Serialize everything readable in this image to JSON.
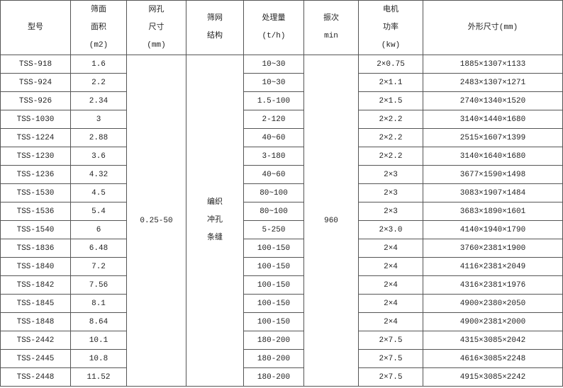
{
  "headers": [
    {
      "lines": [
        "型号"
      ]
    },
    {
      "lines": [
        "筛面",
        "面积",
        "(m2)"
      ]
    },
    {
      "lines": [
        "网孔",
        "尺寸",
        "(mm)"
      ]
    },
    {
      "lines": [
        "筛网",
        "结构"
      ]
    },
    {
      "lines": [
        "处理量",
        "(t/h)"
      ]
    },
    {
      "lines": [
        "振次",
        "min"
      ]
    },
    {
      "lines": [
        "电机",
        "功率",
        "(kw)"
      ]
    },
    {
      "lines": [
        "外形尺寸(mm)"
      ]
    }
  ],
  "shared": {
    "mesh_size": "0.25-50",
    "mesh_structure": [
      "编织",
      "冲孔",
      "条缝"
    ],
    "vibration": "960"
  },
  "rows": [
    {
      "model": "TSS-918",
      "area": "1.6",
      "capacity": "10~30",
      "power": "2×0.75",
      "dims": "1885×1307×1133"
    },
    {
      "model": "TSS-924",
      "area": "2.2",
      "capacity": "10~30",
      "power": "2×1.1",
      "dims": "2483×1307×1271"
    },
    {
      "model": "TSS-926",
      "area": "2.34",
      "capacity": "1.5-100",
      "power": "2×1.5",
      "dims": "2740×1340×1520"
    },
    {
      "model": "TSS-1030",
      "area": "3",
      "capacity": "2-120",
      "power": "2×2.2",
      "dims": "3140×1440×1680"
    },
    {
      "model": "TSS-1224",
      "area": "2.88",
      "capacity": "40~60",
      "power": "2×2.2",
      "dims": "2515×1607×1399"
    },
    {
      "model": "TSS-1230",
      "area": "3.6",
      "capacity": "3-180",
      "power": "2×2.2",
      "dims": "3140×1640×1680"
    },
    {
      "model": "TSS-1236",
      "area": "4.32",
      "capacity": "40~60",
      "power": "2×3",
      "dims": "3677×1590×1498"
    },
    {
      "model": "TSS-1530",
      "area": "4.5",
      "capacity": "80~100",
      "power": "2×3",
      "dims": "3083×1907×1484"
    },
    {
      "model": "TSS-1536",
      "area": "5.4",
      "capacity": "80~100",
      "power": "2×3",
      "dims": "3683×1890×1601"
    },
    {
      "model": "TSS-1540",
      "area": "6",
      "capacity": "5-250",
      "power": "2×3.0",
      "dims": "4140×1940×1790"
    },
    {
      "model": "TSS-1836",
      "area": "6.48",
      "capacity": "100-150",
      "power": "2×4",
      "dims": "3760×2381×1900"
    },
    {
      "model": "TSS-1840",
      "area": "7.2",
      "capacity": "100-150",
      "power": "2×4",
      "dims": "4116×2381×2049"
    },
    {
      "model": "TSS-1842",
      "area": "7.56",
      "capacity": "100-150",
      "power": "2×4",
      "dims": "4316×2381×1976"
    },
    {
      "model": "TSS-1845",
      "area": "8.1",
      "capacity": "100-150",
      "power": "2×4",
      "dims": "4900×2380×2050"
    },
    {
      "model": "TSS-1848",
      "area": "8.64",
      "capacity": "100-150",
      "power": "2×4",
      "dims": "4900×2381×2000"
    },
    {
      "model": "TSS-2442",
      "area": "10.1",
      "capacity": "180-200",
      "power": "2×7.5",
      "dims": "4315×3085×2042"
    },
    {
      "model": "TSS-2445",
      "area": "10.8",
      "capacity": "180-200",
      "power": "2×7.5",
      "dims": "4616×3085×2248"
    },
    {
      "model": "TSS-2448",
      "area": "11.52",
      "capacity": "180-200",
      "power": "2×7.5",
      "dims": "4915×3085×2242"
    }
  ]
}
